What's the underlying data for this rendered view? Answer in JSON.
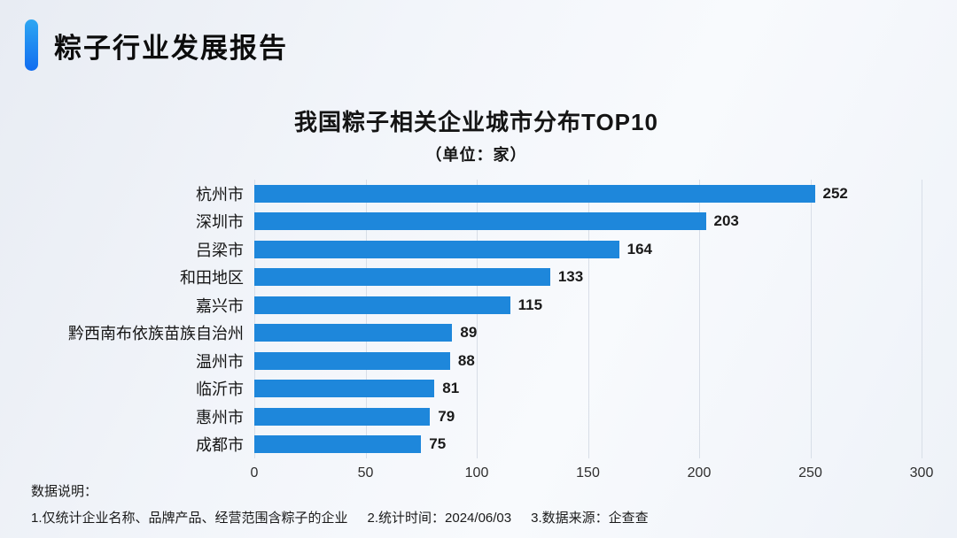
{
  "header": {
    "title": "粽子行业发展报告"
  },
  "chart_data": {
    "type": "bar",
    "orientation": "horizontal",
    "title": "我国粽子相关企业城市分布TOP10",
    "subtitle": "（单位：家）",
    "categories": [
      "杭州市",
      "深圳市",
      "吕梁市",
      "和田地区",
      "嘉兴市",
      "黔西南布依族苗族自治州",
      "温州市",
      "临沂市",
      "惠州市",
      "成都市"
    ],
    "values": [
      252,
      203,
      164,
      133,
      115,
      89,
      88,
      81,
      79,
      75
    ],
    "xlabel": "",
    "ylabel": "",
    "xlim": [
      0,
      300
    ],
    "x_ticks": [
      0,
      50,
      100,
      150,
      200,
      250,
      300
    ],
    "grid": true,
    "legend": false,
    "bar_color": "#1E87DB"
  },
  "footnote": {
    "label": "数据说明：",
    "notes": [
      "1.仅统计企业名称、品牌产品、经营范围含粽子的企业",
      "2.统计时间：2024/06/03",
      "3.数据来源：企查查"
    ]
  },
  "colors": {
    "accent_top": "#2ea7f2",
    "accent_bottom": "#116df0",
    "bar": "#1E87DB",
    "gridline": "#d8dee7"
  }
}
